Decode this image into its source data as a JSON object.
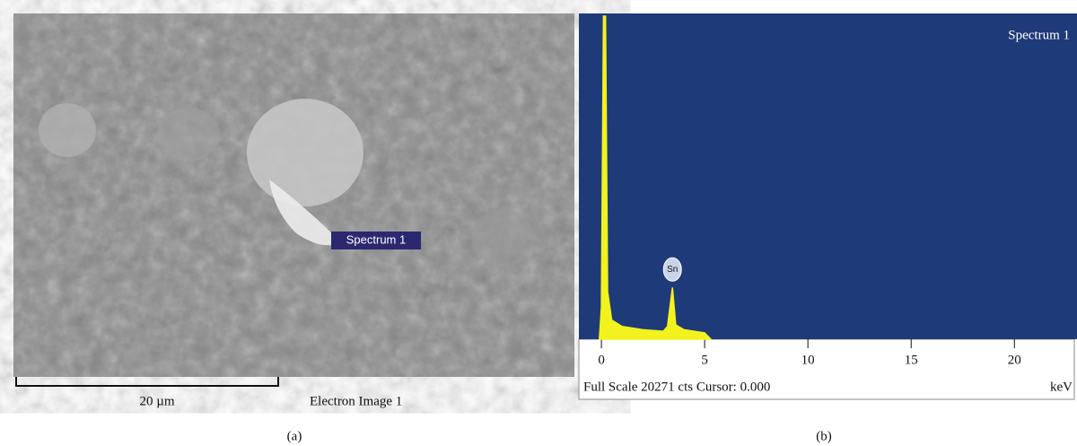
{
  "panel_a": {
    "marker_label": "Spectrum 1",
    "scale_label": "20 µm",
    "image_label": "Electron Image 1",
    "caption": "(a)"
  },
  "chart_data": {
    "type": "line",
    "title": "Spectrum 1",
    "x": [
      -0.1,
      0,
      0.1,
      0.2,
      0.3,
      0.5,
      1,
      2,
      3,
      3.2,
      3.44,
      3.6,
      4,
      5,
      5.3
    ],
    "values": [
      0,
      2000,
      20271,
      20271,
      3000,
      1200,
      800,
      600,
      500,
      800,
      3250,
      900,
      600,
      400,
      0
    ],
    "color": "#f2f21e",
    "background": "#1f3a78",
    "xlim": [
      -1.09,
      22.9
    ],
    "xticks": [
      0,
      5,
      10,
      15,
      20
    ],
    "ylim": [
      0,
      20271
    ],
    "peak_label": "Sn",
    "status": "Full Scale 20271 cts Cursor: 0.000",
    "x_unit": "keV",
    "caption": "(b)"
  }
}
